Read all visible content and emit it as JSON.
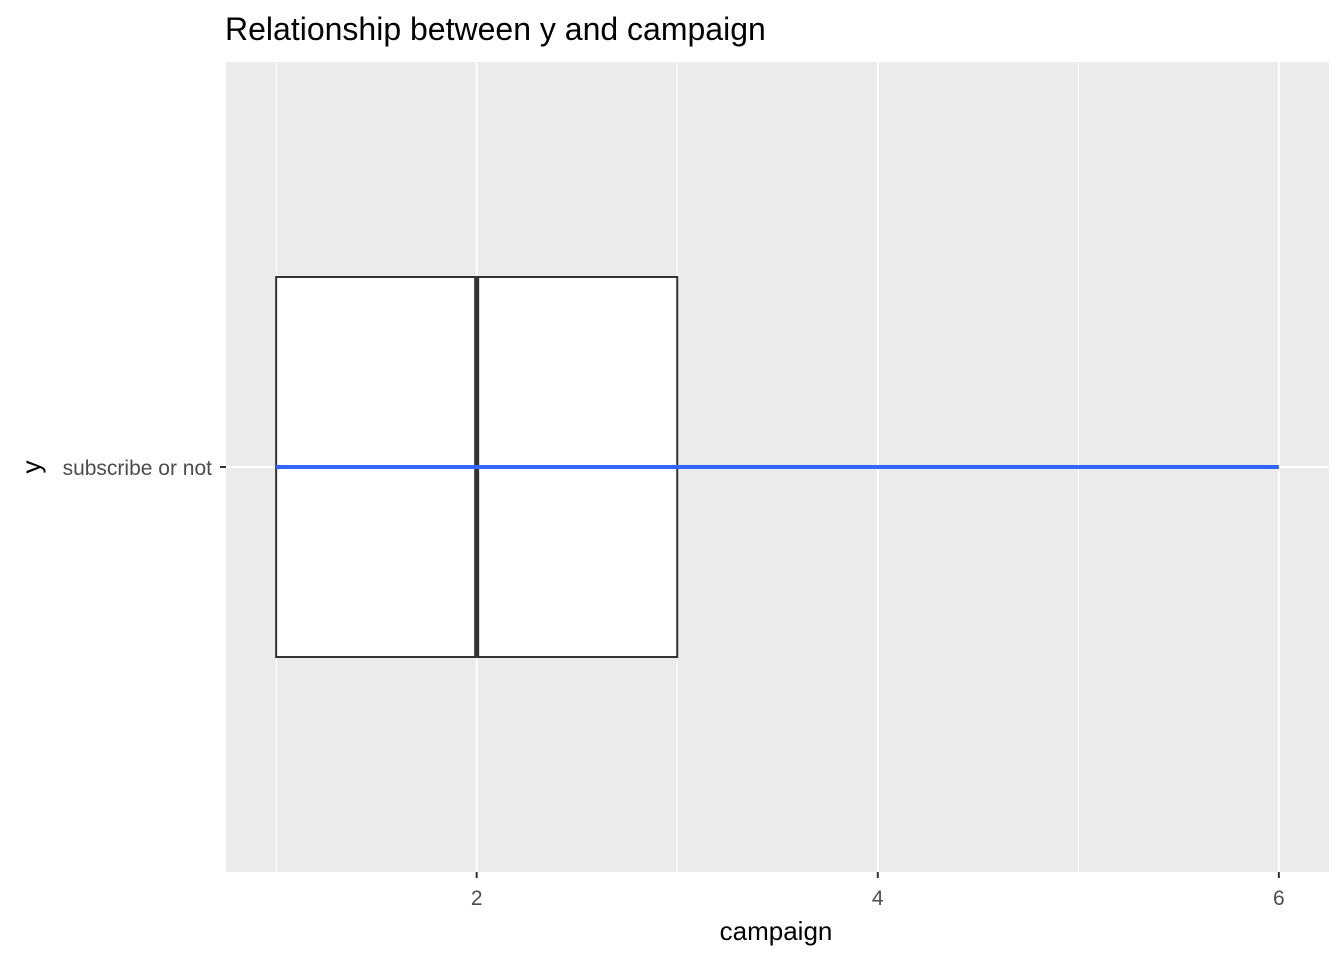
{
  "chart_data": {
    "type": "boxplot",
    "title": "Relationship between y and campaign",
    "xlabel": "campaign",
    "ylabel": "y",
    "xlim": [
      0.75,
      6.25
    ],
    "x_ticks": [
      2,
      4,
      6
    ],
    "x_tick_labels": [
      "2",
      "4",
      "6"
    ],
    "categories": [
      "subscribe or not"
    ],
    "series": [
      {
        "category": "subscribe or not",
        "min": 1,
        "q1": 1,
        "median": 2,
        "q3": 3,
        "max": 6
      }
    ],
    "grid": true,
    "colors": {
      "panel_background": "#ebebeb",
      "grid_major": "#ffffff",
      "box_fill": "#ffffff",
      "box_outline": "#333333",
      "whisker_line": "#3366ff",
      "tick_label": "#4d4d4d",
      "text": "#000000"
    }
  }
}
